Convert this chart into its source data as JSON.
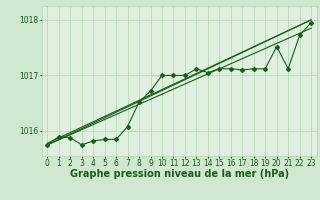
{
  "background_color": "#cfe8cf",
  "plot_bg_color": "#dff0df",
  "grid_color": "#b0d4b0",
  "line_color": "#1a5c1a",
  "xlabel": "Graphe pression niveau de la mer (hPa)",
  "xlabel_fontsize": 7,
  "tick_fontsize": 5.5,
  "ylim": [
    1015.55,
    1018.25
  ],
  "xlim": [
    -0.5,
    23.5
  ],
  "yticks": [
    1016,
    1017,
    1018
  ],
  "xticks": [
    0,
    1,
    2,
    3,
    4,
    5,
    6,
    7,
    8,
    9,
    10,
    11,
    12,
    13,
    14,
    15,
    16,
    17,
    18,
    19,
    20,
    21,
    22,
    23
  ],
  "main_series": {
    "x": [
      0,
      1,
      2,
      3,
      4,
      5,
      6,
      7,
      8,
      9,
      10,
      11,
      12,
      13,
      14,
      15,
      16,
      17,
      18,
      19,
      20,
      21,
      22,
      23
    ],
    "y": [
      1015.75,
      1015.9,
      1015.88,
      1015.75,
      1015.82,
      1015.85,
      1015.85,
      1016.08,
      1016.52,
      1016.72,
      1017.0,
      1017.0,
      1017.0,
      1017.12,
      1017.05,
      1017.12,
      1017.12,
      1017.1,
      1017.12,
      1017.12,
      1017.52,
      1017.12,
      1017.72,
      1017.95
    ],
    "marker": "D",
    "markersize": 2.0,
    "linewidth": 0.8
  },
  "trend_lines": [
    {
      "x0": 0,
      "y0": 1015.75,
      "x1": 23,
      "y1": 1018.0,
      "linewidth": 0.8
    },
    {
      "x0": 0,
      "y0": 1015.75,
      "x1": 23,
      "y1": 1017.85,
      "linewidth": 0.8
    },
    {
      "x0": 0,
      "y0": 1015.78,
      "x1": 23,
      "y1": 1018.0,
      "linewidth": 0.8
    }
  ]
}
